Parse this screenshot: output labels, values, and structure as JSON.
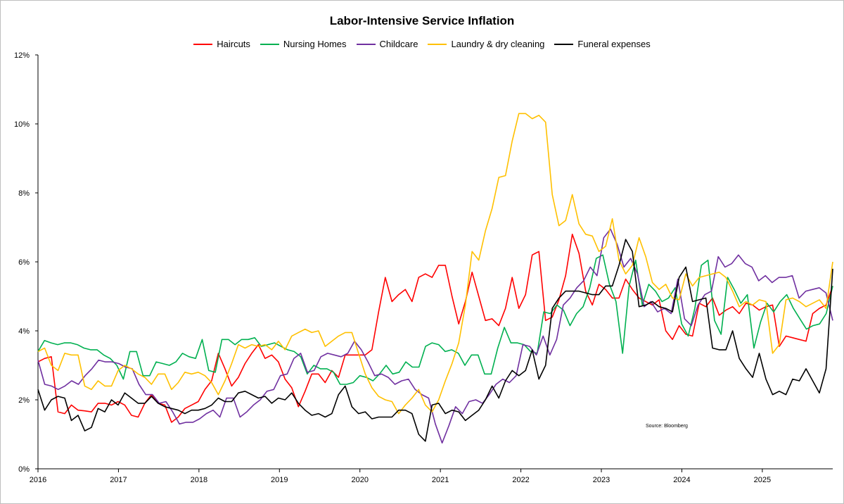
{
  "chart_data": {
    "type": "line",
    "title": "Labor-Intensive Service Inflation",
    "source": "Source:  Bloomberg",
    "x_tick_labels": [
      "2016",
      "2017",
      "2018",
      "2019",
      "2020",
      "2021",
      "2022",
      "2023",
      "2024",
      "2025"
    ],
    "y_tick_labels": [
      "0%",
      "2%",
      "4%",
      "6%",
      "8%",
      "10%",
      "12%"
    ],
    "y_ticks": [
      0,
      2,
      4,
      6,
      8,
      10,
      12
    ],
    "ylim": [
      0,
      12
    ],
    "xlim": [
      2016.0,
      2025.875
    ],
    "legend_position": "top-center",
    "grid": false,
    "series": [
      {
        "name": "Haircuts",
        "color": "#ff0000",
        "values": [
          3.1,
          3.2,
          3.25,
          1.65,
          1.6,
          1.85,
          1.7,
          1.68,
          1.65,
          1.9,
          1.9,
          1.85,
          1.95,
          1.85,
          1.55,
          1.5,
          1.9,
          2.15,
          1.9,
          1.85,
          1.35,
          1.5,
          1.75,
          1.85,
          1.95,
          2.3,
          2.55,
          3.35,
          2.9,
          2.4,
          2.65,
          3.05,
          3.35,
          3.6,
          3.2,
          3.3,
          3.1,
          2.6,
          2.35,
          1.8,
          2.25,
          2.75,
          2.75,
          2.5,
          2.85,
          2.65,
          3.3,
          3.3,
          3.3,
          3.3,
          3.45,
          4.55,
          5.55,
          4.85,
          5.05,
          5.2,
          4.85,
          5.55,
          5.65,
          5.55,
          5.9,
          5.9,
          5.0,
          4.2,
          4.85,
          5.7,
          5.0,
          4.3,
          4.35,
          4.15,
          4.65,
          5.55,
          4.65,
          5.05,
          6.2,
          6.3,
          4.3,
          4.4,
          4.9,
          5.6,
          6.8,
          6.25,
          5.15,
          4.75,
          5.35,
          5.2,
          4.95,
          4.95,
          5.5,
          5.2,
          4.95,
          4.85,
          4.75,
          4.9,
          4.0,
          3.75,
          4.15,
          3.9,
          3.85,
          4.8,
          4.7,
          4.95,
          4.45,
          4.6,
          4.7,
          4.5,
          4.8,
          4.75,
          4.6,
          4.7,
          4.75,
          3.55,
          3.85,
          3.8,
          3.75,
          3.7,
          4.5,
          4.65,
          4.75,
          5.3
        ]
      },
      {
        "name": "Nursing Homes",
        "color": "#00b050",
        "values": [
          3.4,
          3.72,
          3.65,
          3.6,
          3.65,
          3.65,
          3.6,
          3.5,
          3.45,
          3.45,
          3.3,
          3.2,
          3.0,
          2.6,
          3.4,
          3.4,
          2.7,
          2.7,
          3.1,
          3.05,
          3.0,
          3.1,
          3.35,
          3.25,
          3.2,
          3.75,
          2.85,
          2.8,
          3.75,
          3.75,
          3.6,
          3.75,
          3.75,
          3.8,
          3.55,
          3.6,
          3.65,
          3.55,
          3.45,
          3.4,
          3.25,
          2.75,
          3.0,
          2.9,
          2.9,
          2.8,
          2.45,
          2.45,
          2.5,
          2.7,
          2.65,
          2.55,
          2.75,
          3.0,
          2.75,
          2.8,
          3.1,
          2.95,
          2.95,
          3.55,
          3.65,
          3.6,
          3.4,
          3.45,
          3.35,
          3.0,
          3.3,
          3.3,
          2.75,
          2.75,
          3.5,
          4.1,
          3.65,
          3.65,
          3.6,
          3.4,
          3.35,
          4.55,
          4.5,
          4.75,
          4.6,
          4.15,
          4.5,
          4.7,
          5.25,
          6.1,
          6.2,
          5.35,
          4.85,
          3.35,
          5.3,
          6.05,
          4.75,
          5.35,
          5.15,
          4.85,
          4.95,
          5.25,
          4.2,
          3.85,
          4.65,
          5.9,
          6.05,
          4.3,
          3.9,
          5.55,
          5.2,
          4.8,
          5.05,
          3.5,
          4.25,
          4.8,
          4.55,
          4.85,
          5.05,
          4.65,
          4.35,
          4.05,
          4.15,
          4.2,
          4.5,
          5.3
        ]
      },
      {
        "name": "Childcare",
        "color": "#7030a0",
        "values": [
          3.15,
          2.45,
          2.4,
          2.3,
          2.4,
          2.55,
          2.45,
          2.7,
          2.9,
          3.15,
          3.1,
          3.1,
          3.05,
          2.95,
          2.9,
          2.45,
          2.15,
          2.15,
          1.9,
          1.95,
          1.65,
          1.3,
          1.35,
          1.35,
          1.45,
          1.6,
          1.7,
          1.5,
          2.05,
          2.05,
          1.5,
          1.65,
          1.85,
          2.0,
          2.25,
          2.3,
          2.7,
          2.75,
          3.2,
          3.35,
          2.8,
          2.85,
          3.25,
          3.35,
          3.3,
          3.25,
          3.35,
          3.7,
          3.45,
          3.1,
          2.7,
          2.75,
          2.65,
          2.45,
          2.55,
          2.6,
          2.3,
          2.15,
          2.05,
          1.3,
          0.75,
          1.25,
          1.8,
          1.6,
          1.95,
          2.0,
          1.9,
          2.15,
          2.45,
          2.6,
          2.5,
          2.7,
          3.6,
          3.55,
          3.3,
          3.85,
          3.3,
          3.75,
          4.75,
          4.95,
          5.25,
          5.45,
          5.85,
          5.6,
          6.7,
          6.95,
          6.5,
          5.85,
          6.1,
          5.65,
          4.7,
          4.85,
          4.55,
          4.65,
          4.5,
          5.5,
          4.35,
          4.15,
          4.75,
          5.05,
          5.15,
          6.15,
          5.85,
          5.95,
          6.2,
          5.95,
          5.85,
          5.45,
          5.6,
          5.4,
          5.55,
          5.55,
          5.6,
          4.95,
          5.15,
          5.2,
          5.25,
          5.1,
          4.3
        ]
      },
      {
        "name": "Laundry & dry cleaning",
        "color": "#ffc000",
        "values": [
          3.4,
          3.5,
          3.0,
          2.85,
          3.35,
          3.3,
          3.3,
          2.4,
          2.3,
          2.55,
          2.4,
          2.4,
          2.85,
          3.0,
          2.9,
          2.75,
          2.65,
          2.45,
          2.75,
          2.75,
          2.3,
          2.5,
          2.8,
          2.75,
          2.8,
          2.7,
          2.5,
          2.15,
          2.55,
          3.05,
          3.6,
          3.5,
          3.6,
          3.55,
          3.6,
          3.45,
          3.7,
          3.45,
          3.85,
          3.95,
          4.05,
          3.95,
          4.0,
          3.55,
          3.7,
          3.85,
          3.95,
          3.95,
          3.35,
          2.75,
          2.35,
          2.1,
          2.0,
          1.95,
          1.6,
          1.85,
          2.05,
          2.3,
          1.85,
          1.65,
          2.0,
          2.55,
          3.05,
          3.65,
          4.75,
          6.3,
          6.05,
          6.9,
          7.55,
          8.45,
          8.5,
          9.5,
          10.3,
          10.3,
          10.15,
          10.25,
          10.05,
          7.95,
          7.05,
          7.2,
          7.95,
          7.1,
          6.8,
          6.75,
          6.3,
          6.45,
          7.25,
          6.05,
          5.65,
          5.9,
          6.7,
          6.15,
          5.4,
          5.2,
          5.35,
          4.95,
          4.9,
          5.65,
          5.3,
          5.55,
          5.6,
          5.65,
          5.7,
          5.55,
          5.15,
          4.7,
          4.85,
          4.75,
          4.9,
          4.85,
          3.35,
          3.6,
          4.9,
          4.95,
          4.85,
          4.7,
          4.8,
          4.9,
          4.65,
          6.0
        ]
      },
      {
        "name": "Funeral expenses",
        "color": "#000000",
        "values": [
          2.3,
          1.7,
          2.0,
          2.1,
          2.05,
          1.4,
          1.55,
          1.1,
          1.2,
          1.75,
          1.65,
          2.0,
          1.85,
          2.2,
          2.05,
          1.9,
          1.9,
          2.1,
          1.9,
          1.8,
          1.75,
          1.7,
          1.6,
          1.7,
          1.7,
          1.75,
          1.85,
          2.05,
          1.95,
          1.95,
          2.2,
          2.25,
          2.15,
          2.05,
          2.1,
          1.9,
          2.05,
          2.0,
          2.2,
          1.9,
          1.7,
          1.55,
          1.6,
          1.5,
          1.6,
          2.15,
          2.4,
          1.8,
          1.6,
          1.65,
          1.45,
          1.5,
          1.5,
          1.5,
          1.7,
          1.7,
          1.6,
          1.0,
          0.8,
          1.85,
          1.9,
          1.6,
          1.7,
          1.65,
          1.4,
          1.55,
          1.7,
          2.0,
          2.4,
          2.05,
          2.55,
          2.85,
          2.7,
          2.85,
          3.45,
          2.6,
          3.0,
          4.65,
          4.95,
          5.15,
          5.15,
          5.15,
          5.1,
          5.05,
          5.05,
          5.3,
          5.3,
          5.9,
          6.65,
          6.3,
          4.7,
          4.75,
          4.85,
          4.7,
          4.65,
          4.55,
          5.55,
          5.85,
          4.85,
          4.9,
          4.95,
          3.5,
          3.45,
          3.45,
          4.0,
          3.2,
          2.9,
          2.65,
          3.35,
          2.6,
          2.15,
          2.25,
          2.15,
          2.6,
          2.55,
          2.9,
          2.55,
          2.2,
          2.9,
          5.8
        ]
      }
    ]
  }
}
